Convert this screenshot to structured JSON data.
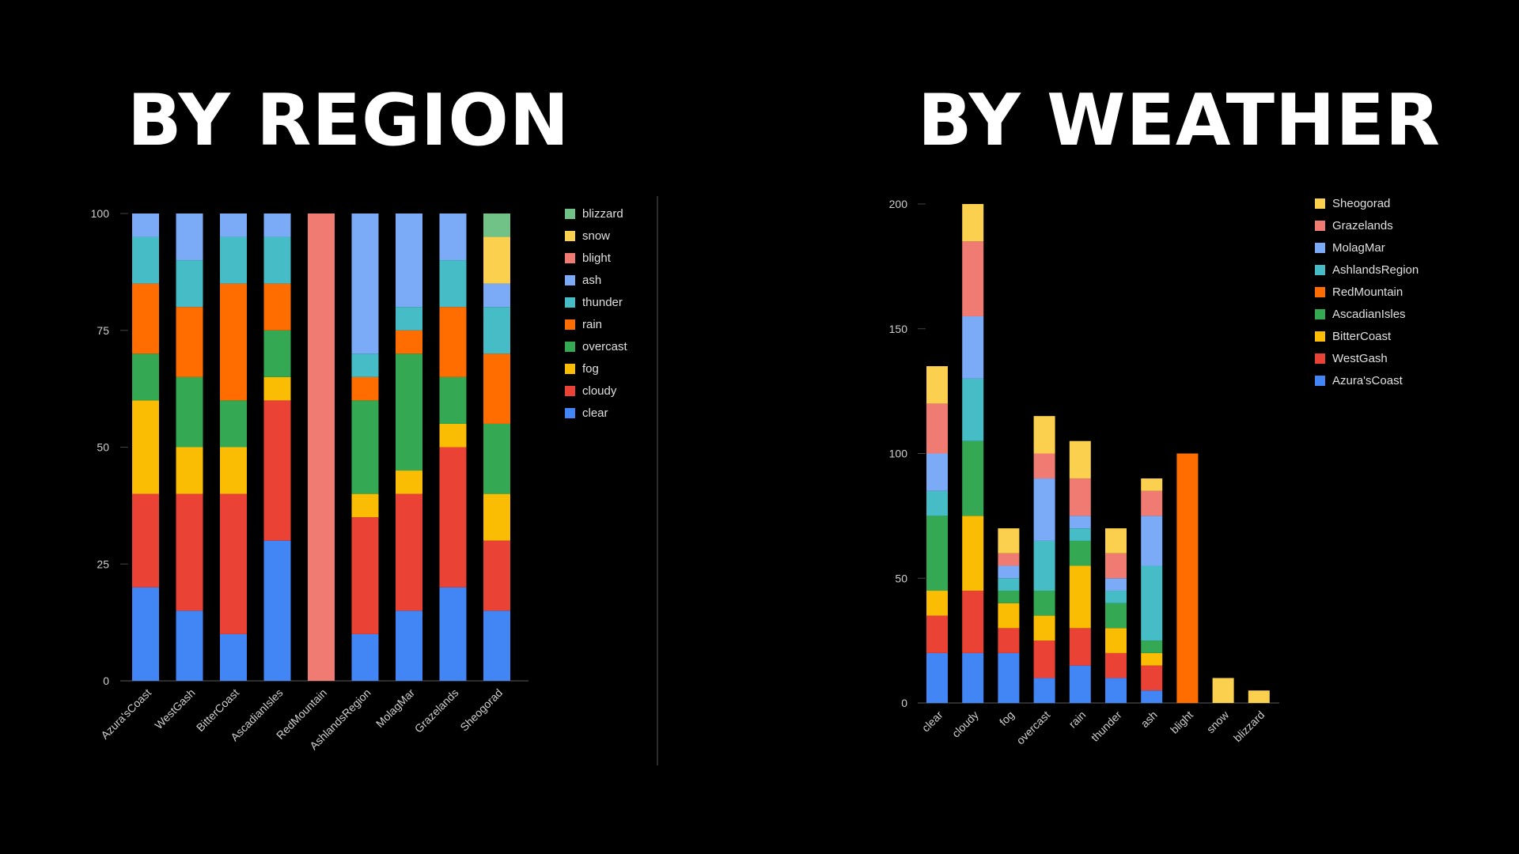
{
  "titles": {
    "left": "BY REGION",
    "right": "BY WEATHER"
  },
  "chart_data": [
    {
      "type": "bar",
      "stacked": true,
      "title": "BY REGION",
      "categories": [
        "Azura'sCoast",
        "WestGash",
        "BitterCoast",
        "AscadianIsles",
        "RedMountain",
        "AshlandsRegion",
        "MolagMar",
        "Grazelands",
        "Sheogorad"
      ],
      "ylim": [
        0,
        100
      ],
      "yticks": [
        0,
        25,
        50,
        75,
        100
      ],
      "grid": false,
      "legend": "right",
      "series": [
        {
          "name": "clear",
          "color": "#4285f4",
          "values": [
            20,
            15,
            10,
            30,
            0,
            10,
            15,
            20,
            15
          ]
        },
        {
          "name": "cloudy",
          "color": "#ea4335",
          "values": [
            20,
            25,
            30,
            30,
            0,
            25,
            25,
            30,
            15
          ]
        },
        {
          "name": "fog",
          "color": "#fbbc04",
          "values": [
            20,
            10,
            10,
            5,
            0,
            5,
            5,
            5,
            10
          ]
        },
        {
          "name": "overcast",
          "color": "#34a853",
          "values": [
            10,
            15,
            10,
            10,
            0,
            20,
            25,
            10,
            15
          ]
        },
        {
          "name": "rain",
          "color": "#ff6d01",
          "values": [
            15,
            15,
            25,
            10,
            0,
            5,
            5,
            15,
            15
          ]
        },
        {
          "name": "thunder",
          "color": "#46bdc6",
          "values": [
            10,
            10,
            10,
            10,
            0,
            5,
            5,
            10,
            10
          ]
        },
        {
          "name": "ash",
          "color": "#7baaf7",
          "values": [
            5,
            10,
            5,
            5,
            0,
            30,
            20,
            10,
            5
          ]
        },
        {
          "name": "blight",
          "color": "#f07b72",
          "values": [
            0,
            0,
            0,
            0,
            100,
            0,
            0,
            0,
            0
          ]
        },
        {
          "name": "snow",
          "color": "#fcd04f",
          "values": [
            0,
            0,
            0,
            0,
            0,
            0,
            0,
            0,
            10
          ]
        },
        {
          "name": "blizzard",
          "color": "#71c287",
          "values": [
            0,
            0,
            0,
            0,
            0,
            0,
            0,
            0,
            5
          ]
        }
      ]
    },
    {
      "type": "bar",
      "stacked": true,
      "title": "BY WEATHER",
      "categories": [
        "clear",
        "cloudy",
        "fog",
        "overcast",
        "rain",
        "thunder",
        "ash",
        "blight",
        "snow",
        "blizzard"
      ],
      "ylim": [
        0,
        200
      ],
      "yticks": [
        0,
        50,
        100,
        150,
        200
      ],
      "grid": false,
      "legend": "right",
      "series": [
        {
          "name": "Azura'sCoast",
          "color": "#4285f4",
          "values": [
            20,
            20,
            20,
            10,
            15,
            10,
            5,
            0,
            0,
            0
          ]
        },
        {
          "name": "WestGash",
          "color": "#ea4335",
          "values": [
            15,
            25,
            10,
            15,
            15,
            10,
            10,
            0,
            0,
            0
          ]
        },
        {
          "name": "BitterCoast",
          "color": "#fbbc04",
          "values": [
            10,
            30,
            10,
            10,
            25,
            10,
            5,
            0,
            0,
            0
          ]
        },
        {
          "name": "AscadianIsles",
          "color": "#34a853",
          "values": [
            30,
            30,
            5,
            10,
            10,
            10,
            5,
            0,
            0,
            0
          ]
        },
        {
          "name": "RedMountain",
          "color": "#ff6d01",
          "values": [
            0,
            0,
            0,
            0,
            0,
            0,
            0,
            100,
            0,
            0
          ]
        },
        {
          "name": "AshlandsRegion",
          "color": "#46bdc6",
          "values": [
            10,
            25,
            5,
            20,
            5,
            5,
            30,
            0,
            0,
            0
          ]
        },
        {
          "name": "MolagMar",
          "color": "#7baaf7",
          "values": [
            15,
            25,
            5,
            25,
            5,
            5,
            20,
            0,
            0,
            0
          ]
        },
        {
          "name": "Grazelands",
          "color": "#f07b72",
          "values": [
            20,
            30,
            5,
            10,
            15,
            10,
            10,
            0,
            0,
            0
          ]
        },
        {
          "name": "Sheogorad",
          "color": "#fcd04f",
          "values": [
            15,
            15,
            10,
            15,
            15,
            10,
            5,
            0,
            10,
            5
          ]
        }
      ]
    }
  ]
}
